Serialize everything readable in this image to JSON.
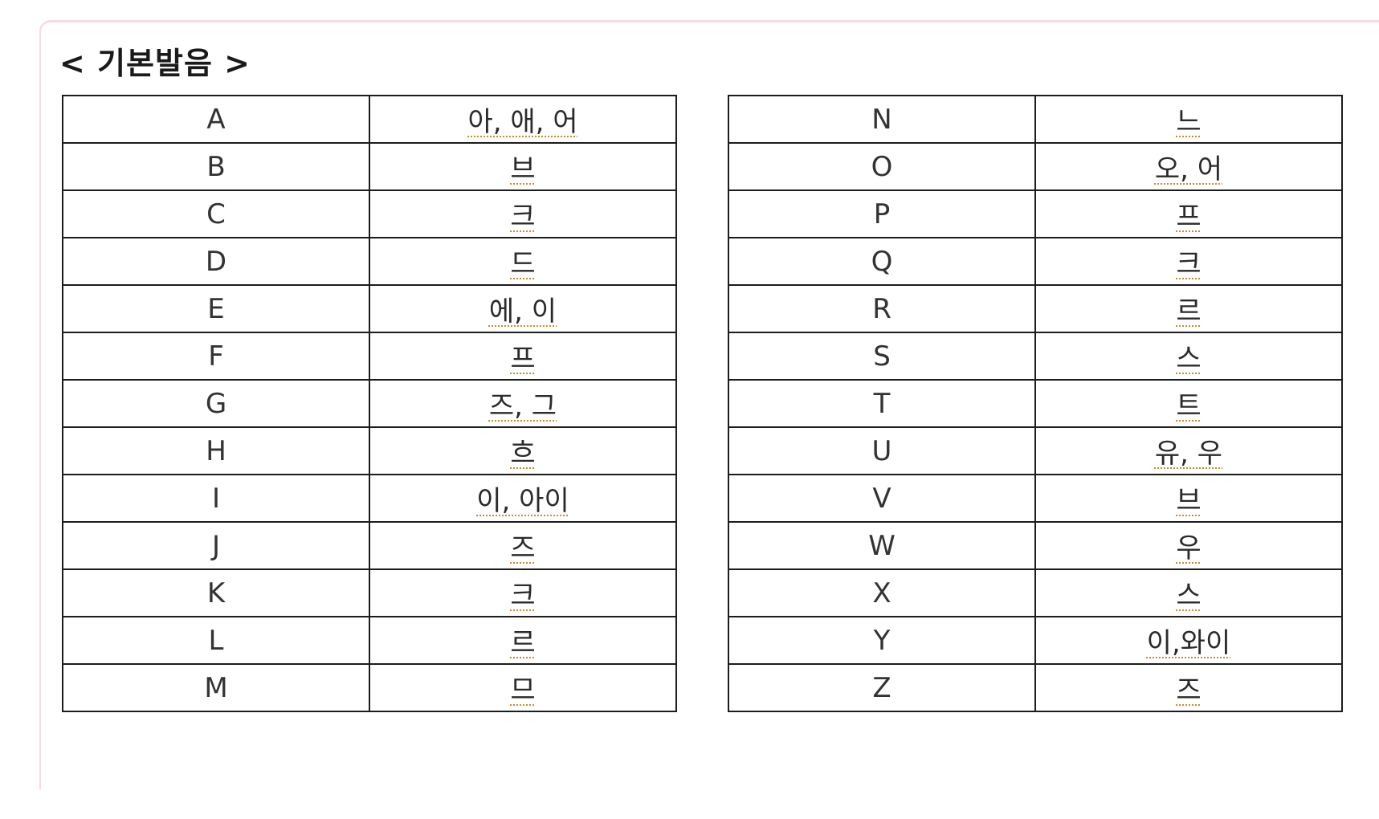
{
  "heading": "< 기본발음 >",
  "left_table": [
    {
      "letter": "A",
      "sound": "아, 애, 어"
    },
    {
      "letter": "B",
      "sound": "브"
    },
    {
      "letter": "C",
      "sound": "크"
    },
    {
      "letter": "D",
      "sound": "드"
    },
    {
      "letter": "E",
      "sound": "에, 이"
    },
    {
      "letter": "F",
      "sound": "프"
    },
    {
      "letter": "G",
      "sound": "즈, 그"
    },
    {
      "letter": "H",
      "sound": "흐"
    },
    {
      "letter": "I",
      "sound": "이, 아이"
    },
    {
      "letter": "J",
      "sound": "즈"
    },
    {
      "letter": "K",
      "sound": "크"
    },
    {
      "letter": "L",
      "sound": "르"
    },
    {
      "letter": "M",
      "sound": "므"
    }
  ],
  "right_table": [
    {
      "letter": "N",
      "sound": "느"
    },
    {
      "letter": "O",
      "sound": "오, 어"
    },
    {
      "letter": "P",
      "sound": "프"
    },
    {
      "letter": "Q",
      "sound": "크"
    },
    {
      "letter": "R",
      "sound": "르"
    },
    {
      "letter": "S",
      "sound": "스"
    },
    {
      "letter": "T",
      "sound": "트"
    },
    {
      "letter": "U",
      "sound": "유, 우"
    },
    {
      "letter": "V",
      "sound": "브"
    },
    {
      "letter": "W",
      "sound": "우"
    },
    {
      "letter": "X",
      "sound": "스"
    },
    {
      "letter": "Y",
      "sound": "이,와이"
    },
    {
      "letter": "Z",
      "sound": "즈"
    }
  ]
}
